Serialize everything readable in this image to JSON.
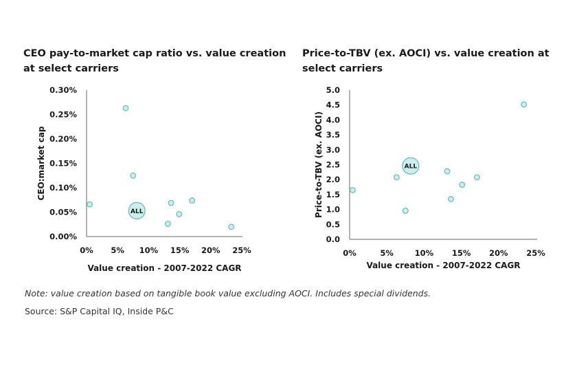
{
  "chart_data": [
    {
      "type": "scatter",
      "title_lines": [
        "CEO pay-to-market cap ratio vs. value creation",
        "at select carriers"
      ],
      "xlabel": "Value creation - 2007-2022 CAGR",
      "ylabel": "CEO:market cap",
      "xlim": [
        0,
        25
      ],
      "ylim": [
        0,
        0.3
      ],
      "xticks": [
        "0%",
        "5%",
        "10%",
        "15%",
        "20%",
        "25%"
      ],
      "yticks": [
        "0.00%",
        "0.05%",
        "0.10%",
        "0.15%",
        "0.20%",
        "0.25%",
        "0.30%"
      ],
      "grid": false,
      "points": [
        {
          "x": 6.3,
          "y": 0.263
        },
        {
          "x": 7.5,
          "y": 0.125
        },
        {
          "x": 0.5,
          "y": 0.066
        },
        {
          "x": 13.6,
          "y": 0.069
        },
        {
          "x": 17.0,
          "y": 0.074
        },
        {
          "x": 14.9,
          "y": 0.046
        },
        {
          "x": 13.1,
          "y": 0.026
        },
        {
          "x": 23.3,
          "y": 0.02
        }
      ],
      "highlight": {
        "label": "ALL",
        "x": 8.1,
        "y": 0.053
      }
    },
    {
      "type": "scatter",
      "title_lines": [
        "Price-to-TBV (ex. AOCI) vs. value creation at",
        "select carriers"
      ],
      "xlabel": "Value creation - 2007-2022 CAGR",
      "ylabel": "Price-to-TBV (ex. AOCI)",
      "xlim": [
        0,
        25
      ],
      "ylim": [
        0,
        5
      ],
      "xticks": [
        "0%",
        "5%",
        "10%",
        "15%",
        "20%",
        "25%"
      ],
      "yticks": [
        "0.0",
        "0.5",
        "1.0",
        "1.5",
        "2.0",
        "2.5",
        "3.0",
        "3.5",
        "4.0",
        "4.5",
        "5.0"
      ],
      "grid": false,
      "points": [
        {
          "x": 0.4,
          "y": 1.65
        },
        {
          "x": 6.3,
          "y": 2.08
        },
        {
          "x": 7.5,
          "y": 0.96
        },
        {
          "x": 13.1,
          "y": 2.28
        },
        {
          "x": 13.6,
          "y": 1.35
        },
        {
          "x": 15.1,
          "y": 1.83
        },
        {
          "x": 17.1,
          "y": 2.08
        },
        {
          "x": 23.4,
          "y": 4.52
        }
      ],
      "highlight": {
        "label": "ALL",
        "x": 8.2,
        "y": 2.46
      }
    }
  ],
  "footer": {
    "note": "Note: value creation based on tangible book value excluding AOCI. Includes special dividends.",
    "source": "Source: S&P Capital IQ, Inside P&C"
  },
  "colors": {
    "point_fill": "#cdeeee",
    "point_stroke": "#5fbcbc",
    "axis": "#666666",
    "text": "#1a1a1a"
  }
}
